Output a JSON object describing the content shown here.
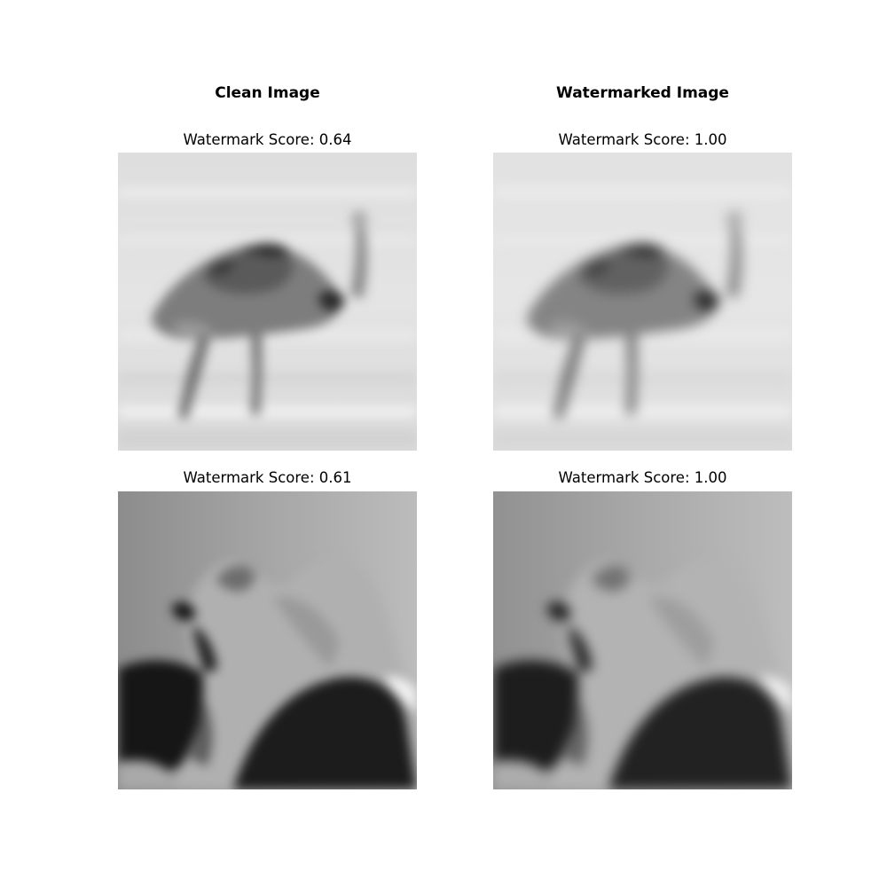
{
  "columns": {
    "clean_title": "Clean Image",
    "watermarked_title": "Watermarked Image"
  },
  "rows": [
    {
      "subject": "ostrich",
      "clean_score_label": "Watermark Score: 0.64",
      "watermarked_score_label": "Watermark Score: 1.00",
      "clean_score": 0.64,
      "watermarked_score": 1.0
    },
    {
      "subject": "bird close-up",
      "clean_score_label": "Watermark Score: 0.61",
      "watermarked_score_label": "Watermark Score: 1.00",
      "clean_score": 0.61,
      "watermarked_score": 1.0
    }
  ],
  "colors": {
    "background": "#ffffff",
    "text": "#000000"
  }
}
